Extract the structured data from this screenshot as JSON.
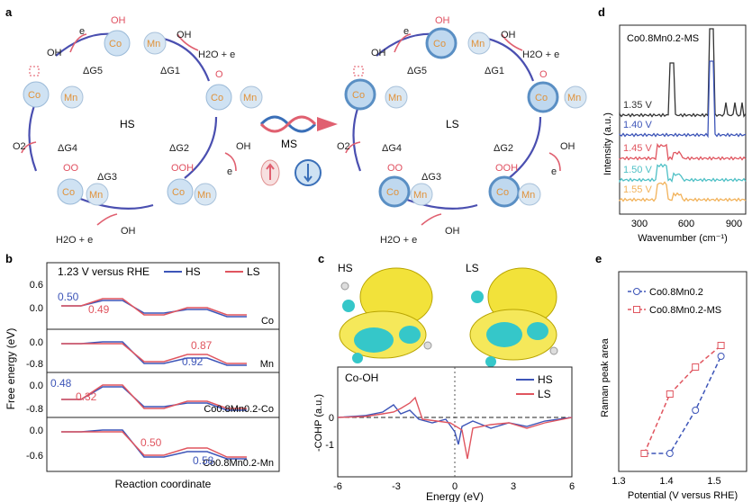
{
  "panel_a": {
    "letter": "a",
    "left_label": "HS",
    "right_label": "LS",
    "center_label": "MS",
    "steps": [
      "ΔG1",
      "ΔG2",
      "ΔG3",
      "ΔG4",
      "ΔG5"
    ],
    "co": "Co",
    "mn": "Mn",
    "oh": "OH",
    "o": "O",
    "ooh": "OOH",
    "oo": "OO",
    "oh_minus": "OH",
    "minus": "-",
    "e": "e",
    "h2o_e": "H2O + e",
    "o2": "O2"
  },
  "panel_b": {
    "letter": "b",
    "title": "1.23 V versus RHE",
    "legend": [
      "HS",
      "LS"
    ],
    "ylabel": "Free energy (eV)",
    "xlabel": "Reaction coordinate",
    "subplots": [
      {
        "name": "Co",
        "yticks": [
          "0.6",
          "0.0"
        ],
        "hs_label": "0.50",
        "ls_label": "0.49"
      },
      {
        "name": "Mn",
        "yticks": [
          "0.0",
          "-0.8"
        ],
        "hs_label": "0.92",
        "ls_label": "0.87"
      },
      {
        "name": "Co0.8Mn0.2-Co",
        "yticks": [
          "0.0",
          "-0.8"
        ],
        "hs_label": "0.48",
        "ls_label": "0.32"
      },
      {
        "name": "Co0.8Mn0.2-Mn",
        "yticks": [
          "0.0",
          "-0.6"
        ],
        "hs_label": "0.58",
        "ls_label": "0.50"
      }
    ]
  },
  "panel_c": {
    "letter": "c",
    "hs": "HS",
    "ls": "LS",
    "cohp_title": "Co-OH",
    "ylabel": "-COHP (a.u.)",
    "xlabel": "Energy (eV)",
    "xticks": [
      "-6",
      "-3",
      "0",
      "3",
      "6"
    ],
    "yticks": [
      "0",
      "-1"
    ],
    "legend": [
      "HS",
      "LS"
    ]
  },
  "panel_d": {
    "letter": "d",
    "title": "Co0.8Mn0.2-MS",
    "ylabel": "Intensity (a.u.)",
    "xlabel": "Wavenumber (cm⁻¹)",
    "xticks": [
      "300",
      "600",
      "900"
    ],
    "voltages": [
      "1.35 V",
      "1.40 V",
      "1.45 V",
      "1.50 V",
      "1.55 V"
    ],
    "colors": [
      "#333333",
      "#3d55b8",
      "#e0555f",
      "#4fc0c6",
      "#f2b25a"
    ]
  },
  "panel_e": {
    "letter": "e",
    "ylabel": "Raman peak area",
    "xlabel": "Potential (V versus RHE)",
    "xticks": [
      "1.3",
      "1.4",
      "1.5"
    ],
    "legend": [
      "Co0.8Mn0.2",
      "Co0.8Mn0.2-MS"
    ]
  },
  "chart_data": [
    {
      "type": "line",
      "xlabel": "Potential (V versus RHE)",
      "ylabel": "Raman peak area",
      "series": [
        {
          "name": "Co0.8Mn0.2",
          "x": [
            1.35,
            1.4,
            1.45,
            1.5
          ],
          "y": [
            0.0,
            0.0,
            0.4,
            0.9
          ]
        },
        {
          "name": "Co0.8Mn0.2-MS",
          "x": [
            1.35,
            1.4,
            1.45,
            1.5
          ],
          "y": [
            0.0,
            0.55,
            0.8,
            1.0
          ]
        }
      ]
    }
  ]
}
